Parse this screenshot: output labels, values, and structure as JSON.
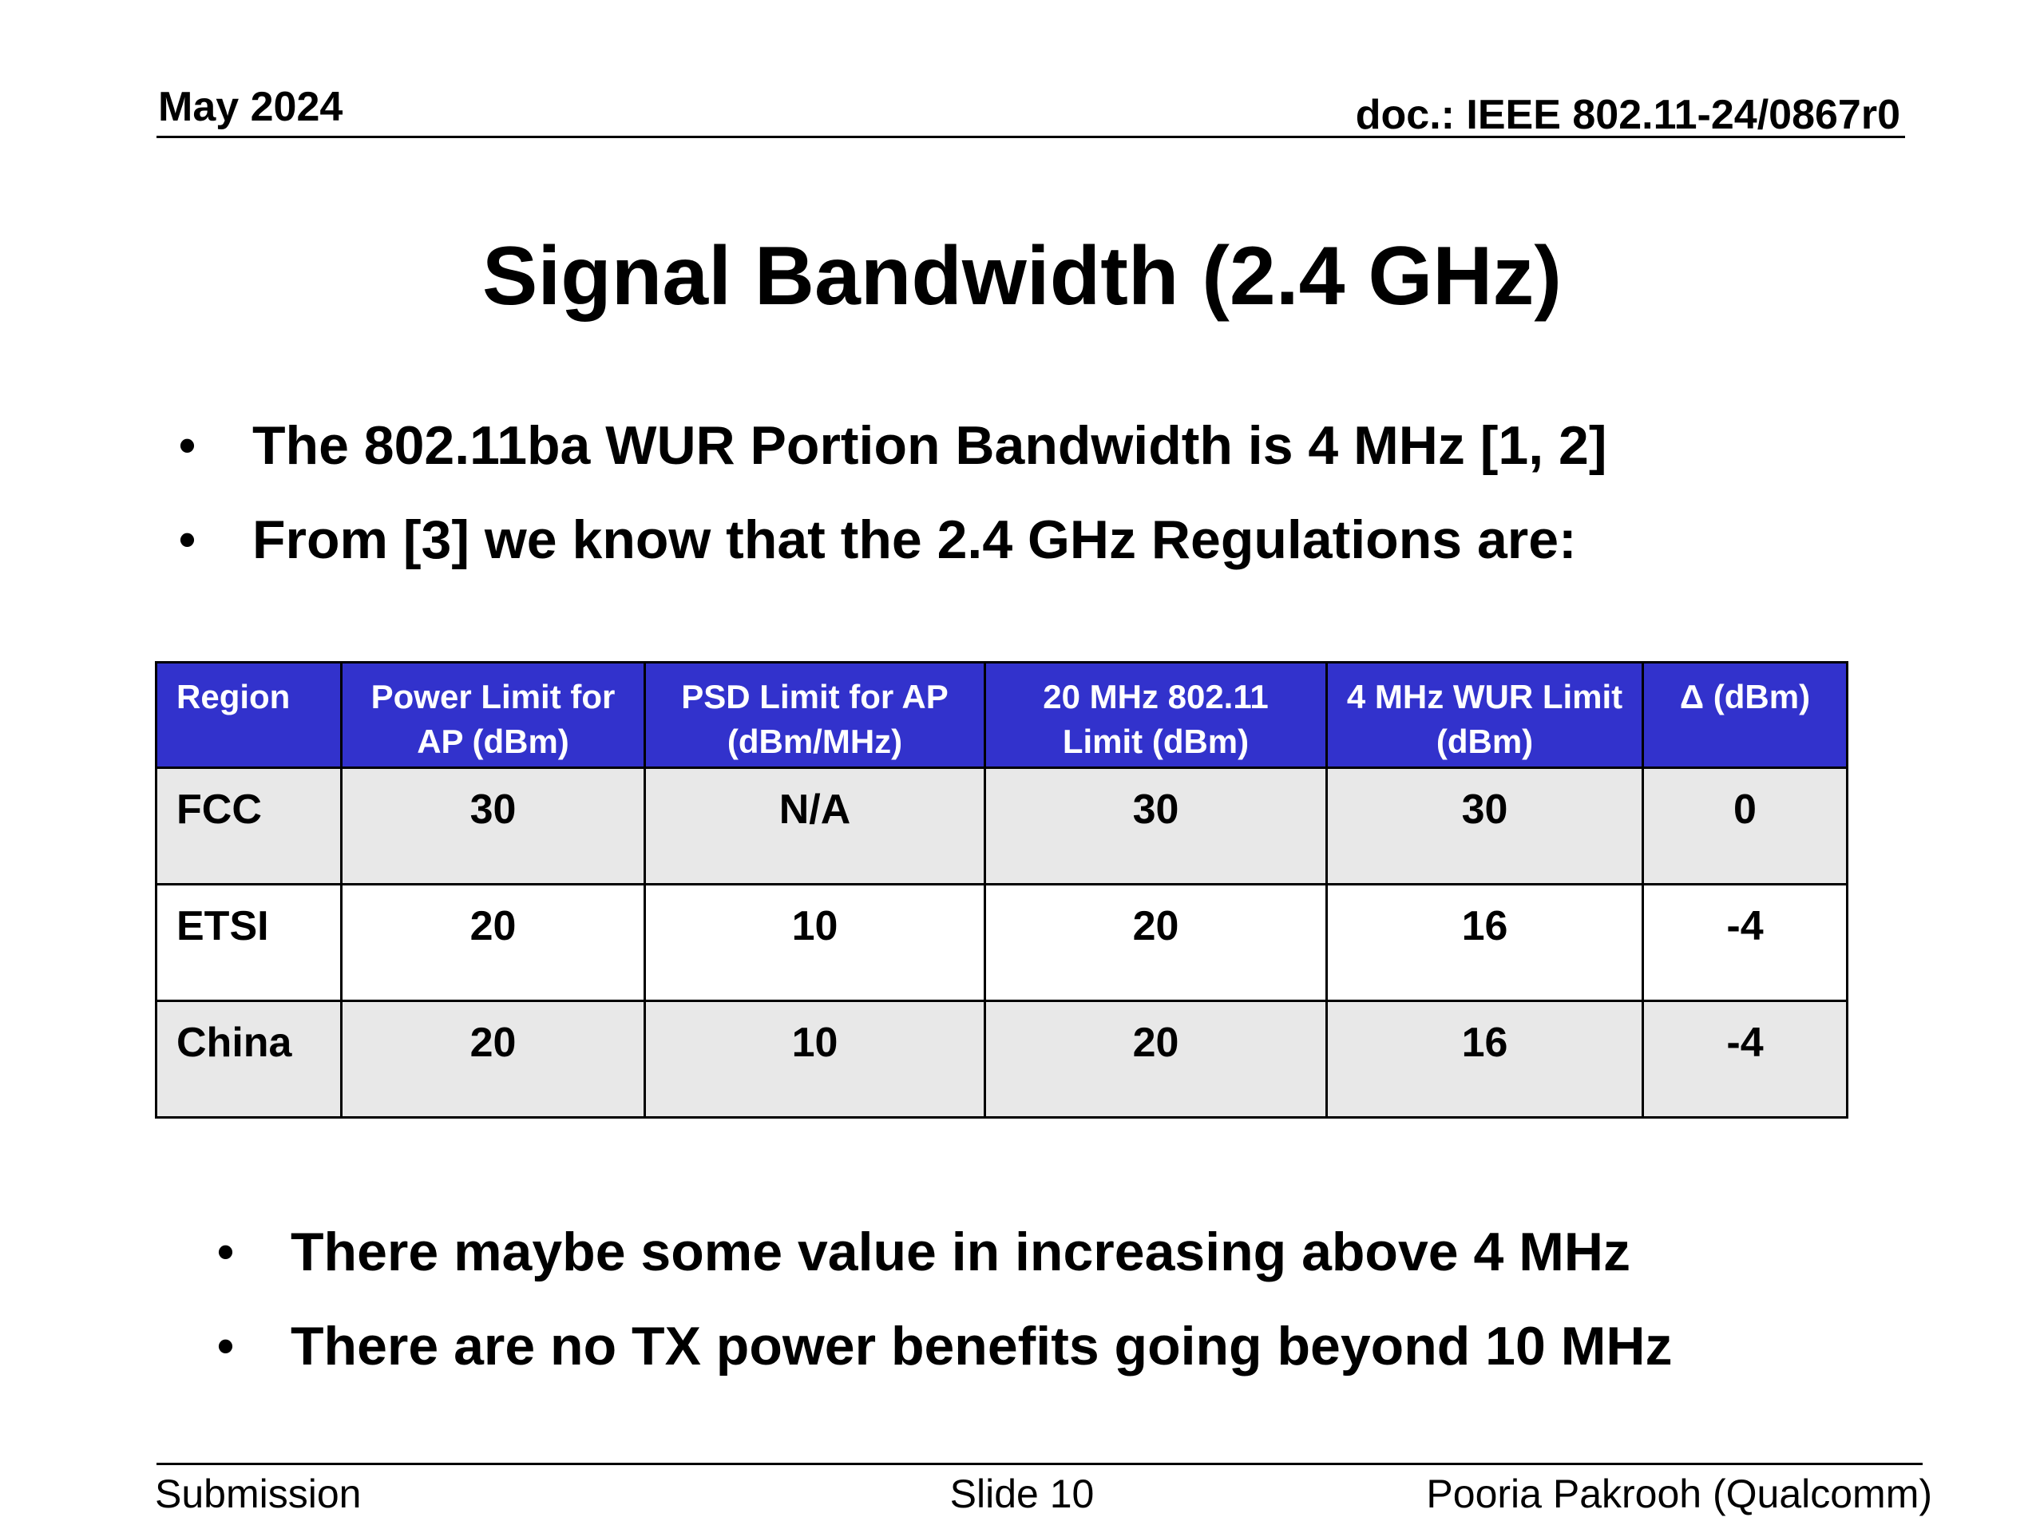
{
  "header": {
    "date": "May 2024",
    "doc": "doc.: IEEE 802.11-24/0867r0"
  },
  "title": "Signal Bandwidth (2.4 GHz)",
  "bullets_top": [
    "The 802.11ba WUR Portion Bandwidth is 4 MHz [1, 2]",
    "From [3] we know that the 2.4 GHz Regulations are:"
  ],
  "table": {
    "headers": [
      [
        "Region"
      ],
      [
        "Power Limit for",
        "AP (dBm)"
      ],
      [
        "PSD Limit for AP",
        "(dBm/MHz)"
      ],
      [
        "20 MHz 802.11",
        "Limit (dBm)"
      ],
      [
        "4 MHz WUR Limit",
        "(dBm)"
      ],
      [
        "Δ (dBm)"
      ]
    ],
    "rows": [
      [
        "FCC",
        "30",
        "N/A",
        "30",
        "30",
        "0"
      ],
      [
        "ETSI",
        "20",
        "10",
        "20",
        "16",
        "-4"
      ],
      [
        "China",
        "20",
        "10",
        "20",
        "16",
        "-4"
      ]
    ]
  },
  "bullets_bottom": [
    "There maybe some value in increasing above 4 MHz",
    "There are no TX power benefits going beyond 10 MHz"
  ],
  "footer": {
    "left": "Submission",
    "center": "Slide 10",
    "right": "Pooria Pakrooh (Qualcomm)"
  },
  "colors": {
    "table_header_bg": "#3232cc",
    "table_row_shaded": "#e8e8e8"
  }
}
